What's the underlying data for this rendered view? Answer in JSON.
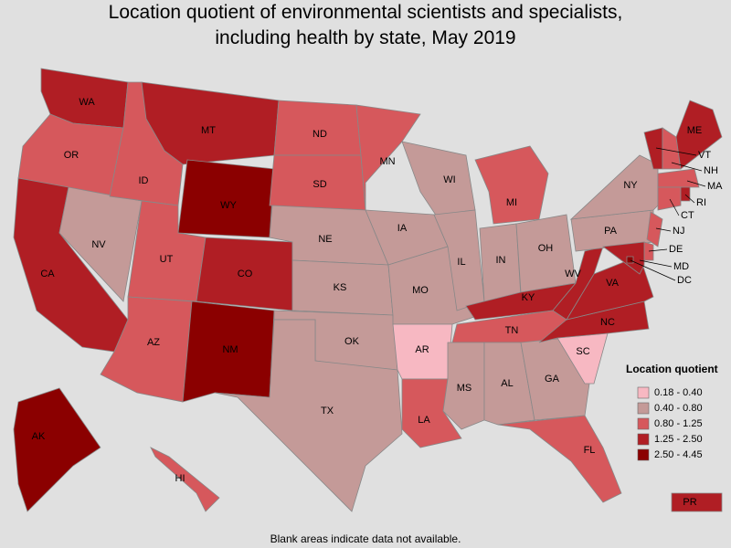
{
  "title": "Location quotient of environmental scientists and specialists, including health by state, May 2019",
  "footnote": "Blank areas indicate data not available.",
  "legend": {
    "title": "Location quotient",
    "items": [
      {
        "label": "0.18 - 0.40",
        "color": "#f7b8c2"
      },
      {
        "label": "0.40 - 0.80",
        "color": "#c49a98"
      },
      {
        "label": "0.80 - 1.25",
        "color": "#d6585c"
      },
      {
        "label": "1.25 - 2.50",
        "color": "#b01e24"
      },
      {
        "label": "2.50 - 4.45",
        "color": "#8b0000"
      }
    ]
  },
  "states": [
    {
      "label": "WA",
      "bin": 3
    },
    {
      "label": "OR",
      "bin": 2
    },
    {
      "label": "CA",
      "bin": 3
    },
    {
      "label": "NV",
      "bin": 1
    },
    {
      "label": "ID",
      "bin": 2
    },
    {
      "label": "MT",
      "bin": 3
    },
    {
      "label": "WY",
      "bin": 4
    },
    {
      "label": "UT",
      "bin": 2
    },
    {
      "label": "CO",
      "bin": 3
    },
    {
      "label": "AZ",
      "bin": 2
    },
    {
      "label": "NM",
      "bin": 4
    },
    {
      "label": "ND",
      "bin": 2
    },
    {
      "label": "SD",
      "bin": 2
    },
    {
      "label": "NE",
      "bin": 1
    },
    {
      "label": "KS",
      "bin": 1
    },
    {
      "label": "OK",
      "bin": 1
    },
    {
      "label": "TX",
      "bin": 1
    },
    {
      "label": "MN",
      "bin": 2
    },
    {
      "label": "IA",
      "bin": 1
    },
    {
      "label": "MO",
      "bin": 1
    },
    {
      "label": "AR",
      "bin": 0
    },
    {
      "label": "LA",
      "bin": 2
    },
    {
      "label": "WI",
      "bin": 1
    },
    {
      "label": "IL",
      "bin": 1
    },
    {
      "label": "MI",
      "bin": 2
    },
    {
      "label": "IN",
      "bin": 1
    },
    {
      "label": "OH",
      "bin": 1
    },
    {
      "label": "KY",
      "bin": 3
    },
    {
      "label": "TN",
      "bin": 2
    },
    {
      "label": "MS",
      "bin": 1
    },
    {
      "label": "AL",
      "bin": 1
    },
    {
      "label": "GA",
      "bin": 1
    },
    {
      "label": "FL",
      "bin": 2
    },
    {
      "label": "SC",
      "bin": 0
    },
    {
      "label": "NC",
      "bin": 3
    },
    {
      "label": "VA",
      "bin": 3
    },
    {
      "label": "WV",
      "bin": 3
    },
    {
      "label": "PA",
      "bin": 1
    },
    {
      "label": "NY",
      "bin": 1
    },
    {
      "label": "VT",
      "bin": 3
    },
    {
      "label": "NH",
      "bin": 2
    },
    {
      "label": "ME",
      "bin": 3
    },
    {
      "label": "MA",
      "bin": 2
    },
    {
      "label": "CT",
      "bin": 2
    },
    {
      "label": "RI",
      "bin": 3
    },
    {
      "label": "NJ",
      "bin": 2
    },
    {
      "label": "DE",
      "bin": 2
    },
    {
      "label": "MD",
      "bin": 3
    },
    {
      "label": "DC",
      "bin": 4
    },
    {
      "label": "AK",
      "bin": 4
    },
    {
      "label": "HI",
      "bin": 2
    },
    {
      "label": "PR",
      "bin": 3
    }
  ]
}
